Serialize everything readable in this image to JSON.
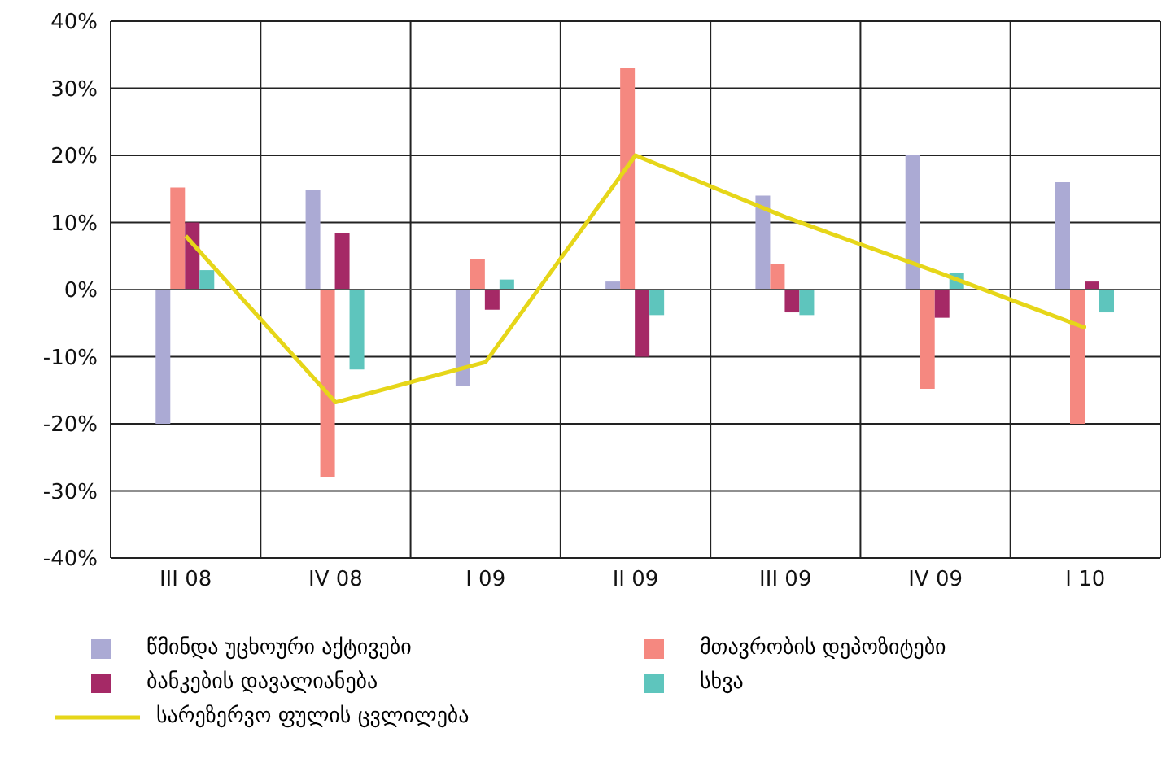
{
  "chart_data": {
    "type": "bar",
    "categories": [
      "III 08",
      "IV 08",
      "I 09",
      "II 09",
      "III 09",
      "IV 09",
      "I 10"
    ],
    "series": [
      {
        "name": "წმინდა უცხოური აქტივები",
        "color": "#abaad4",
        "values": [
          -20,
          14.8,
          -14.4,
          1.2,
          14,
          20,
          16
        ]
      },
      {
        "name": "მთავრობის დეპოზიტები",
        "color": "#f58880",
        "values": [
          15.2,
          -28,
          4.6,
          33,
          3.8,
          -14.8,
          -20
        ]
      },
      {
        "name": "ბანკების დავალიანება",
        "color": "#a52966",
        "values": [
          10,
          8.4,
          -3,
          -10,
          -3.4,
          -4.2,
          1.2
        ]
      },
      {
        "name": "სხვა",
        "color": "#5ec5bd",
        "values": [
          2.9,
          -11.9,
          1.5,
          -3.8,
          -3.8,
          2.5,
          -3.4
        ]
      },
      {
        "name": "სარეზერვო ფულის ცვლილება",
        "type": "line",
        "color": "#e6d619",
        "values": [
          8,
          -16.8,
          -10.8,
          20,
          10.8,
          2.7,
          -5.7
        ]
      }
    ],
    "ylim": [
      -40,
      40
    ],
    "yticks": [
      {
        "value": -40,
        "label": "-40%"
      },
      {
        "value": -30,
        "label": "-30%"
      },
      {
        "value": -20,
        "label": "-20%"
      },
      {
        "value": -10,
        "label": "-10%"
      },
      {
        "value": 0,
        "label": "0%"
      },
      {
        "value": 10,
        "label": "10%"
      },
      {
        "value": 20,
        "label": "20%"
      },
      {
        "value": 30,
        "label": "30%"
      },
      {
        "value": 40,
        "label": "40%"
      }
    ],
    "grid": true,
    "legend": "bottom",
    "marker": "none"
  }
}
